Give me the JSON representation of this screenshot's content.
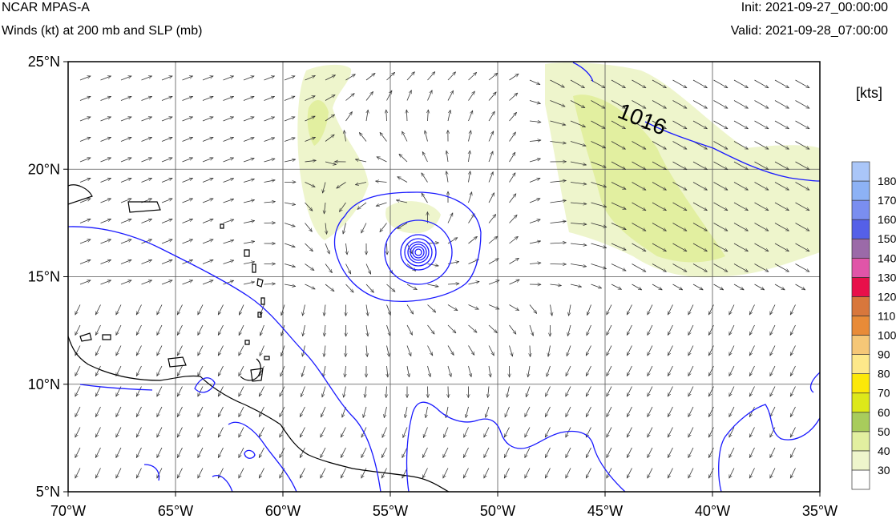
{
  "header": {
    "model": "NCAR MPAS-A",
    "field": "Winds (kt) at 200 mb and SLP (mb)",
    "init": "Init: 2021-09-27_00:00:00",
    "valid": "Valid: 2021-09-28_07:00:00"
  },
  "map": {
    "lon_range": [
      -70,
      -35
    ],
    "lat_range": [
      5,
      25
    ],
    "lon_ticks": [
      -70,
      -65,
      -60,
      -55,
      -50,
      -45,
      -40,
      -35
    ],
    "lat_ticks": [
      5,
      10,
      15,
      20,
      25
    ],
    "lon_tick_labels": [
      "70°W",
      "65°W",
      "60°W",
      "55°W",
      "50°W",
      "45°W",
      "40°W",
      "35°W"
    ],
    "lat_tick_labels": [
      "5°N",
      "10°N",
      "15°N",
      "20°N",
      "25°N"
    ],
    "grid": true,
    "isobar_label": "1016",
    "isobar_label_lonlat": [
      -43.4,
      22.0
    ],
    "storm_center_lonlat": [
      -53.7,
      17.2
    ],
    "colors": {
      "isobar": "#1a1aff",
      "coast": "#000000",
      "grid": "#555555",
      "arrow": "#333333"
    }
  },
  "legend": {
    "units": "[kts]",
    "levels": [
      "30",
      "40",
      "50",
      "60",
      "70",
      "80",
      "90",
      "100",
      "110",
      "120",
      "130",
      "140",
      "150",
      "160",
      "170",
      "180"
    ],
    "colors": [
      "#ffffff",
      "#eef5cc",
      "#e2efa0",
      "#a8cc5c",
      "#dde81a",
      "#fce808",
      "#fde88a",
      "#f5c777",
      "#e88b38",
      "#d8773c",
      "#e8104a",
      "#e055a8",
      "#9b6aa8",
      "#5560e8",
      "#7a8ef0",
      "#8db2f5",
      "#aac6f8"
    ]
  }
}
